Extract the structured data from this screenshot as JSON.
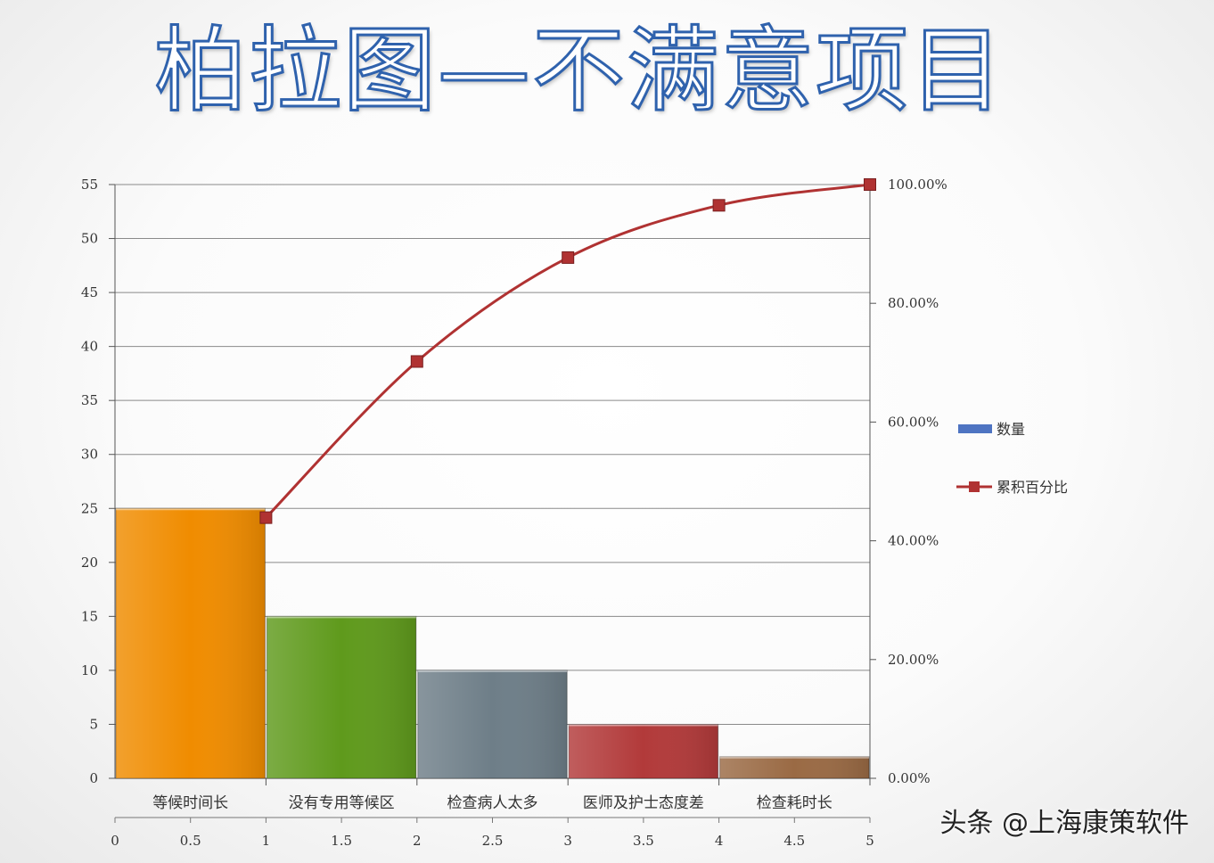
{
  "slide": {
    "title": "柏拉图—不满意项目",
    "watermark": "头条 @上海康策软件"
  },
  "chart_data": {
    "type": "bar",
    "categories": [
      "等候时间长",
      "没有专用等候区",
      "检查病人太多",
      "医师及护士态度差",
      "检查耗时长"
    ],
    "values": [
      25,
      15,
      10,
      5,
      2
    ],
    "bar_colors": [
      "#f08c00",
      "#5f9a1c",
      "#6e7e88",
      "#b23a3a",
      "#9a6a44"
    ],
    "line_series": {
      "name": "累积百分比",
      "x": [
        1,
        2,
        3,
        4,
        5
      ],
      "values": [
        43.9,
        70.2,
        87.7,
        96.5,
        100
      ],
      "color": "#b03232"
    },
    "bar_series_name": "数量",
    "bar_legend_color": "#4e74c2",
    "y_left": {
      "min": 0,
      "max": 55,
      "ticks": [
        "0",
        "5",
        "10",
        "15",
        "20",
        "25",
        "30",
        "35",
        "40",
        "45",
        "50",
        "55"
      ]
    },
    "y_right": {
      "min": 0,
      "max": 100,
      "ticks": [
        "0.00%",
        "20.00%",
        "40.00%",
        "60.00%",
        "80.00%",
        "100.00%"
      ]
    },
    "x_secondary": {
      "min": 0,
      "max": 5,
      "ticks": [
        "0",
        "0.5",
        "1",
        "1.5",
        "2",
        "2.5",
        "3",
        "3.5",
        "4",
        "4.5",
        "5"
      ]
    },
    "grid": true,
    "legend_position": "right"
  }
}
